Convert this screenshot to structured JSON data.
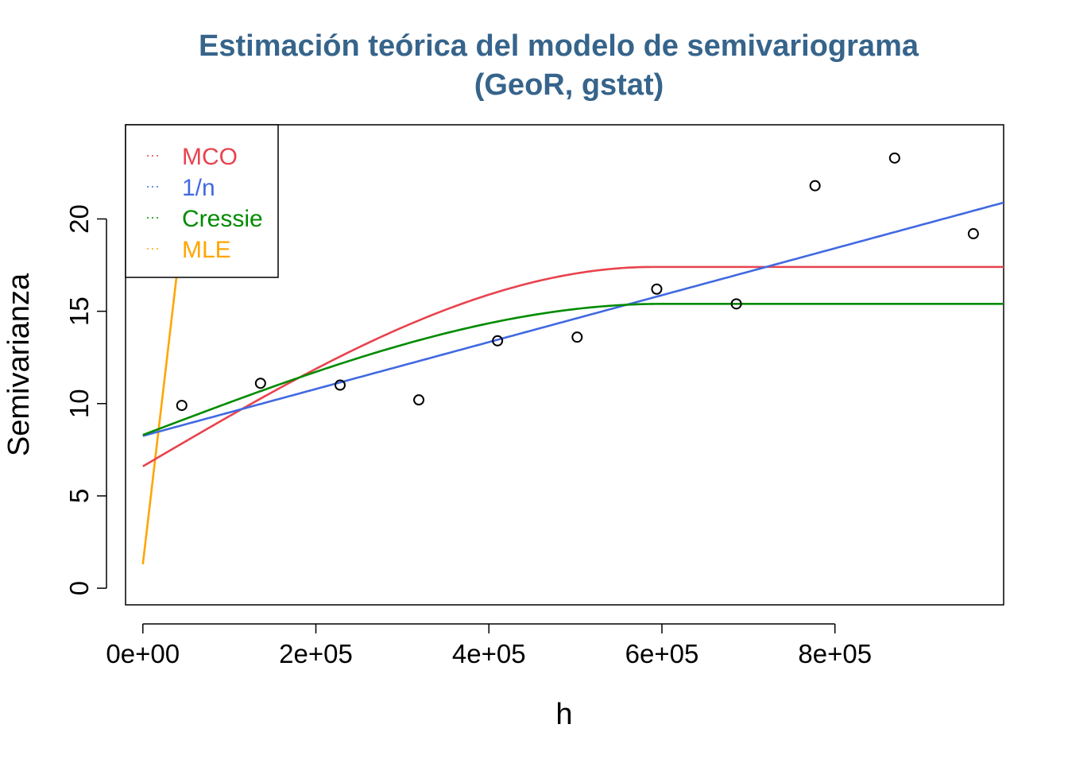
{
  "chart_data": {
    "type": "scatter",
    "title": "Estimación teórica del modelo de semivariograma",
    "subtitle": "(GeoR, gstat)",
    "title_color": "#36648B",
    "xlabel": "h",
    "ylabel": "Semivarianza",
    "xlim": [
      -20000,
      995000
    ],
    "ylim": [
      -0.9,
      25.1
    ],
    "x_ticks": [
      0,
      200000,
      400000,
      600000,
      800000
    ],
    "x_tick_labels": [
      "0e+00",
      "2e+05",
      "4e+05",
      "6e+05",
      "8e+05"
    ],
    "y_ticks": [
      0,
      5,
      10,
      15,
      20
    ],
    "y_tick_labels": [
      "0",
      "5",
      "10",
      "15",
      "20"
    ],
    "grid": false,
    "legend_position": "top-left",
    "points": {
      "x": [
        45000,
        136000,
        228000,
        319000,
        410000,
        502000,
        594000,
        686000,
        777000,
        869000,
        960000
      ],
      "y": [
        9.9,
        11.1,
        11.0,
        10.2,
        13.4,
        13.6,
        16.2,
        15.4,
        21.8,
        23.3,
        19.2
      ]
    },
    "series": [
      {
        "name": "MCO",
        "color": "#E8434E",
        "model": "spherical",
        "nugget": 6.6,
        "sill": 17.4,
        "range": 590000
      },
      {
        "name": "1/n",
        "color": "#4169E1",
        "model": "linear",
        "intercept": 8.25,
        "slope_per_1e5": 1.27
      },
      {
        "name": "Cressie",
        "color": "#008B00",
        "model": "spherical",
        "nugget": 8.3,
        "sill": 15.4,
        "range": 600000
      },
      {
        "name": "MLE",
        "color": "#FFA500",
        "model": "linear",
        "intercept": 1.3,
        "slope_per_1e5": 40
      }
    ]
  }
}
